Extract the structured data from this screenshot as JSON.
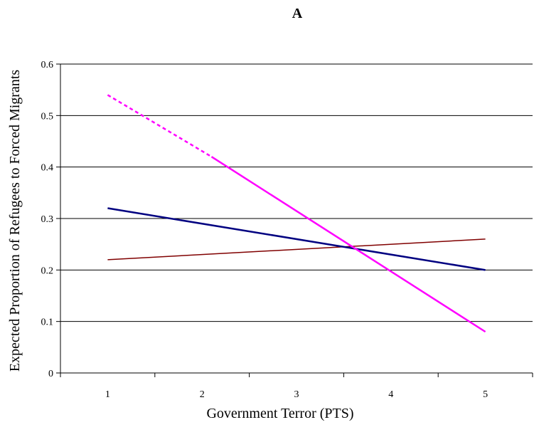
{
  "chart_data": {
    "type": "line",
    "title": "A",
    "xlabel": "Government Terror (PTS)",
    "ylabel": "Expected Proportion of Refugees to Forced Migrants",
    "x": [
      1,
      2,
      3,
      4,
      5
    ],
    "xlim": [
      0.5,
      5.5
    ],
    "ylim": [
      0,
      0.6
    ],
    "y_ticks": [
      "0",
      "0.1",
      "0.2",
      "0.3",
      "0.4",
      "0.5",
      "0.6"
    ],
    "x_ticks": [
      "1",
      "2",
      "3",
      "4",
      "5"
    ],
    "grid": "horizontal",
    "series": [
      {
        "x": [
          1,
          5
        ],
        "values": [
          0.22,
          0.26
        ],
        "color": "#800000",
        "style": "solid"
      },
      {
        "x": [
          1,
          5
        ],
        "values": [
          0.32,
          0.2
        ],
        "color": "#000080",
        "style": "solid"
      },
      {
        "x": [
          1,
          2.1
        ],
        "values": [
          0.54,
          0.42
        ],
        "color": "#ff00ff",
        "style": "dashed"
      },
      {
        "x": [
          2.1,
          5
        ],
        "values": [
          0.42,
          0.08
        ],
        "color": "#ff00ff",
        "style": "solid"
      }
    ]
  }
}
